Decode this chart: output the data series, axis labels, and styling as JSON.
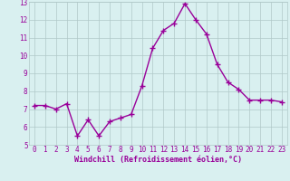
{
  "x": [
    0,
    1,
    2,
    3,
    4,
    5,
    6,
    7,
    8,
    9,
    10,
    11,
    12,
    13,
    14,
    15,
    16,
    17,
    18,
    19,
    20,
    21,
    22,
    23
  ],
  "y": [
    7.2,
    7.2,
    7.0,
    7.3,
    5.5,
    6.4,
    5.5,
    6.3,
    6.5,
    6.7,
    8.3,
    10.4,
    11.4,
    11.8,
    12.9,
    12.0,
    11.2,
    9.5,
    8.5,
    8.1,
    7.5,
    7.5,
    7.5,
    7.4
  ],
  "xlim": [
    -0.5,
    23.5
  ],
  "ylim": [
    5,
    13
  ],
  "yticks": [
    5,
    6,
    7,
    8,
    9,
    10,
    11,
    12,
    13
  ],
  "xticks": [
    0,
    1,
    2,
    3,
    4,
    5,
    6,
    7,
    8,
    9,
    10,
    11,
    12,
    13,
    14,
    15,
    16,
    17,
    18,
    19,
    20,
    21,
    22,
    23
  ],
  "xlabel": "Windchill (Refroidissement éolien,°C)",
  "line_color": "#990099",
  "marker": "+",
  "bg_color": "#d9f0f0",
  "grid_color": "#b0c8c8",
  "tick_label_color": "#990099",
  "axis_label_color": "#990099",
  "xlabel_fontsize": 6.0,
  "tick_fontsize": 5.5,
  "linewidth": 1.0,
  "markersize": 4,
  "markeredgewidth": 1.0
}
